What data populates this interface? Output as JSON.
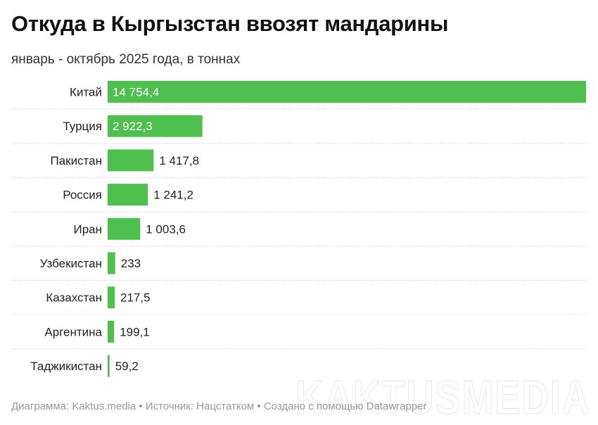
{
  "title": "Откуда в Кыргызстан ввозят мандарины",
  "subtitle": "январь - октябрь 2025 года, в тоннах",
  "footer": "Диаграмма: Kaktus.media • Источник: Нацстатком • Создано с помощью Datawrapper",
  "watermark": "KAKTUSMEDIA",
  "chart_data": {
    "type": "bar",
    "orientation": "horizontal",
    "categories": [
      "Китай",
      "Турция",
      "Пакистан",
      "Россия",
      "Иран",
      "Узбекистан",
      "Казахстан",
      "Аргентина",
      "Таджикистан"
    ],
    "values": [
      14754.4,
      2922.3,
      1417.8,
      1241.2,
      1003.6,
      233,
      217.5,
      199.1,
      59.2
    ],
    "labels": [
      "14 754,4",
      "2 922,3",
      "1 417,8",
      "1 241,2",
      "1 003,6",
      "233",
      "217,5",
      "199,1",
      "59,2"
    ],
    "color": "#4fbf4f",
    "grid": false
  }
}
